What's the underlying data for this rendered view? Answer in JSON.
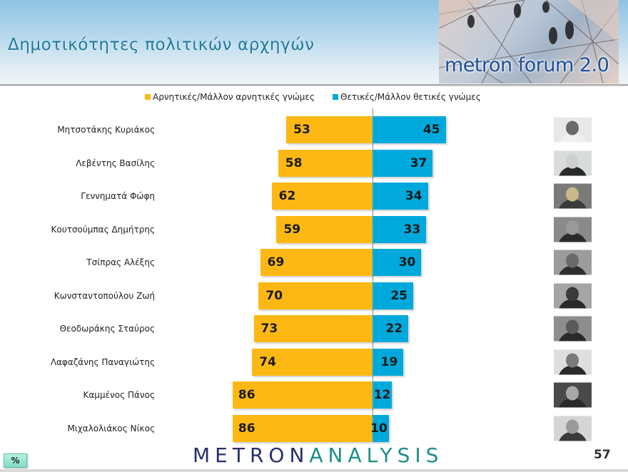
{
  "header": {
    "title": "Δημοτικότητες πολιτικών αρχηγών",
    "logo_text": "metron forum 2.0"
  },
  "legend": {
    "negative": {
      "label": "Αρνητικές/Μάλλον αρνητικές γνώμες",
      "color": "#fdb813"
    },
    "positive": {
      "label": "Θετικές/Μάλλον θετικές γνώμες",
      "color": "#00a9dc"
    }
  },
  "footer": {
    "brand_part1": "METRON",
    "brand_part2": "ANALYSIS",
    "page_number": "57",
    "percent_button": "%"
  },
  "chart_data": {
    "type": "bar",
    "orientation": "horizontal-diverging",
    "title": "Δημοτικότητες πολιτικών αρχηγών",
    "xlabel": "",
    "ylabel": "",
    "unit": "%",
    "legend_position": "top",
    "grid": false,
    "categories": [
      "Μητσοτάκης Κυριάκος",
      "Λεβέντης Βασίλης",
      "Γεννηματά Φώφη",
      "Κουτσούμπας Δημήτρης",
      "Τσίπρας Αλέξης",
      "Κωνσταντοπούλου Ζωή",
      "Θεοδωράκης Σταύρος",
      "Λαφαζάνης Παναγιώτης",
      "Καμμένος Πάνος",
      "Μιχαλολιάκος Νίκος"
    ],
    "series": [
      {
        "name": "Αρνητικές/Μάλλον αρνητικές γνώμες",
        "color": "#fdb813",
        "values": [
          53,
          58,
          62,
          59,
          69,
          70,
          73,
          74,
          86,
          86
        ]
      },
      {
        "name": "Θετικές/Μάλλον θετικές γνώμες",
        "color": "#00a9dc",
        "values": [
          45,
          37,
          34,
          33,
          30,
          25,
          22,
          19,
          12,
          10
        ]
      }
    ]
  },
  "rows": [
    {
      "name": "Μητσοτάκης Κυριάκος",
      "neg": "53",
      "pos": "45"
    },
    {
      "name": "Λεβέντης Βασίλης",
      "neg": "58",
      "pos": "37"
    },
    {
      "name": "Γεννηματά Φώφη",
      "neg": "62",
      "pos": "34"
    },
    {
      "name": "Κουτσούμπας Δημήτρης",
      "neg": "59",
      "pos": "33"
    },
    {
      "name": "Τσίπρας Αλέξης",
      "neg": "69",
      "pos": "30"
    },
    {
      "name": "Κωνσταντοπούλου Ζωή",
      "neg": "70",
      "pos": "25"
    },
    {
      "name": "Θεοδωράκης Σταύρος",
      "neg": "73",
      "pos": "22"
    },
    {
      "name": "Λαφαζάνης Παναγιώτης",
      "neg": "74",
      "pos": "19"
    },
    {
      "name": "Καμμένος Πάνος",
      "neg": "86",
      "pos": "12"
    },
    {
      "name": "Μιχαλολιάκος Νίκος",
      "neg": "86",
      "pos": "10"
    }
  ]
}
